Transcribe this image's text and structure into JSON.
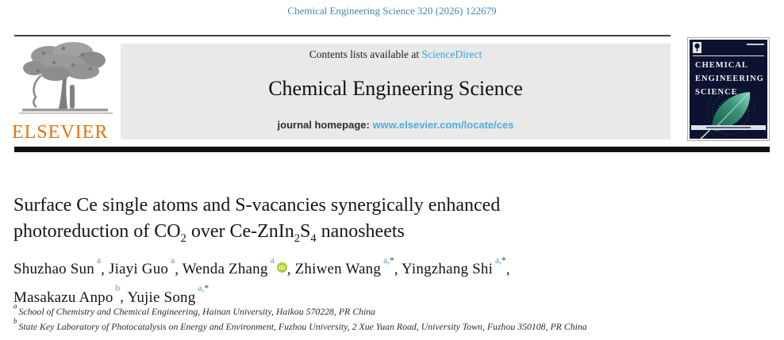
{
  "colors": {
    "citation_blue": "#4186ae",
    "link_blue": "#3b9fe0",
    "url_blue": "#4face2",
    "sup_blue": "#4a9bd5",
    "elsevier_orange": "#e8710a",
    "orcid_green": "#a6ce39",
    "cover_navy": "#0c1230"
  },
  "citation": "Chemical Engineering Science 320 (2026) 122679",
  "masthead": {
    "contents_prefix": "Contents lists available at ",
    "contents_link": "ScienceDirect",
    "journal_title": "Chemical Engineering Science",
    "homepage_prefix": "journal homepage: ",
    "homepage_url": "www.elsevier.com/locate/ces",
    "publisher_wordmark": "ELSEVIER"
  },
  "cover": {
    "title_lines": [
      "CHEMICAL",
      "ENGINEERING",
      "SCIENCE"
    ]
  },
  "article": {
    "title_lines": [
      [
        {
          "t": "Surface Ce single atoms and S-vacancies synergically enhanced"
        }
      ],
      [
        {
          "t": "photoreduction of CO"
        },
        {
          "t": "2",
          "sub": true
        },
        {
          "t": " over Ce-ZnIn"
        },
        {
          "t": "2",
          "sub": true
        },
        {
          "t": "S"
        },
        {
          "t": "4",
          "sub": true
        },
        {
          "t": " nanosheets"
        }
      ]
    ],
    "orcid_label": "iD",
    "authors": [
      {
        "name": "Shuzhao Sun",
        "marks": [
          {
            "t": "a",
            "c": "blue"
          }
        ],
        "sep": ", "
      },
      {
        "name": "Jiayi Guo",
        "marks": [
          {
            "t": "a",
            "c": "blue"
          }
        ],
        "sep": ", "
      },
      {
        "name": "Wenda Zhang",
        "marks": [
          {
            "t": "a",
            "c": "blue"
          }
        ],
        "orcid": true,
        "sep": ", "
      },
      {
        "name": "Zhiwen Wang",
        "marks": [
          {
            "t": "a,",
            "c": "blue"
          },
          {
            "t": "*",
            "c": "dark"
          }
        ],
        "sep": ", "
      },
      {
        "name": "Yingzhang Shi",
        "marks": [
          {
            "t": "a,",
            "c": "blue"
          },
          {
            "t": "*",
            "c": "dark"
          }
        ],
        "sep": ",",
        "br": true
      },
      {
        "name": "Masakazu Anpo",
        "marks": [
          {
            "t": "b",
            "c": "blue"
          }
        ],
        "sep": ", "
      },
      {
        "name": "Yujie Song",
        "marks": [
          {
            "t": "a,",
            "c": "blue"
          },
          {
            "t": "*",
            "c": "dark"
          }
        ],
        "sep": ""
      }
    ],
    "affiliations": [
      {
        "mark": "a",
        "text": "School of Chemistry and Chemical Engineering, Hainan University, Haikou 570228, PR China"
      },
      {
        "mark": "b",
        "text": "State Key Laboratory of Photocatalysis on Energy and Environment, Fuzhou University, 2 Xue Yuan Road, University Town, Fuzhou 350108, PR China"
      }
    ]
  }
}
